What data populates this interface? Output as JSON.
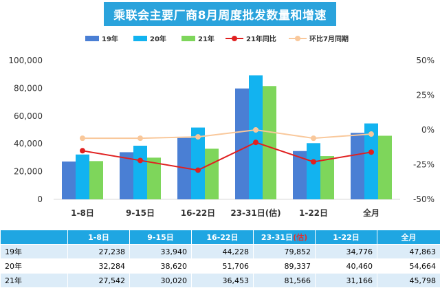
{
  "title": "乘联会主要厂商8月周度批发数量和增速",
  "colors": {
    "title_bg": "#2aa3dc",
    "y19": "#4a7fd4",
    "y20": "#12b3f0",
    "y21": "#7ed65b",
    "yoy21": "#e02020",
    "mom_july": "#f9c89b",
    "table_header": "#1fa6e2"
  },
  "chart_data": {
    "type": "bar",
    "categories": [
      "1-8日",
      "9-15日",
      "16-22日",
      "23-31日(估)",
      "1-22日",
      "全月"
    ],
    "series": [
      {
        "name": "19年",
        "kind": "bar",
        "values": [
          27238,
          33940,
          44228,
          79852,
          34776,
          47863
        ]
      },
      {
        "name": "20年",
        "kind": "bar",
        "values": [
          32284,
          38620,
          51706,
          89337,
          40460,
          54664
        ]
      },
      {
        "name": "21年",
        "kind": "bar",
        "values": [
          27542,
          30020,
          36453,
          81566,
          31166,
          45798
        ]
      },
      {
        "name": "21年同比",
        "kind": "line",
        "axis": "right",
        "values": [
          -15,
          -22,
          -29,
          -9,
          -23,
          -16
        ]
      },
      {
        "name": "环比7月同期",
        "kind": "line",
        "axis": "right",
        "values": [
          -6,
          -6,
          -5,
          0,
          -6,
          -3
        ]
      }
    ],
    "ylim": [
      0,
      100000
    ],
    "yticks": [
      "0",
      "20,000",
      "40,000",
      "60,000",
      "80,000",
      "100,000"
    ],
    "y2lim": [
      -50,
      50
    ],
    "y2ticks": [
      "-50%",
      "-25%",
      "0%",
      "25%",
      "50%"
    ],
    "legend_position": "top",
    "grid": false
  },
  "table": {
    "columns": [
      "",
      "1-8日",
      "9-15日",
      "16-22日",
      "23-31日",
      "(估)",
      "1-22日",
      "全月"
    ],
    "rows": [
      {
        "label": "19年",
        "values": [
          "27,238",
          "33,940",
          "44,228",
          "79,852",
          "34,776",
          "47,863"
        ]
      },
      {
        "label": "20年",
        "values": [
          "32,284",
          "38,620",
          "51,706",
          "89,337",
          "40,460",
          "54,664"
        ]
      },
      {
        "label": "21年",
        "values": [
          "27,542",
          "30,020",
          "36,453",
          "81,566",
          "31,166",
          "45,798"
        ]
      }
    ]
  }
}
